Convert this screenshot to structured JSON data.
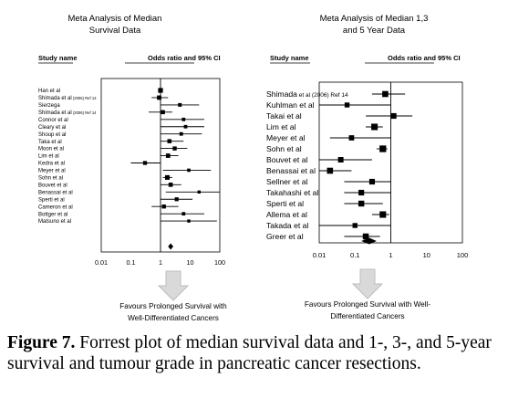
{
  "caption": {
    "figure_label": "Figure 7.",
    "text": "Forrest plot of median survival data and 1-, 3-, and 5-year survival and tumour grade in pancreatic cancer resections."
  },
  "colors": {
    "ink": "#000000",
    "arrow_fill": "#d9d9d9",
    "arrow_stroke": "#bdbdbd"
  },
  "icons": [
    "down-arrow-icon"
  ],
  "chart_data": [
    {
      "type": "forest",
      "title": "Meta Analysis of Median Survival Data",
      "title_lines": [
        "Meta Analysis of Median",
        "Survival Data"
      ],
      "column_headers": [
        "Study name",
        "Odds ratio and 95% CI"
      ],
      "xscale": "log",
      "xlim": [
        0.01,
        100
      ],
      "xticks": [
        "0.01",
        "0.1",
        "1",
        "10",
        "100"
      ],
      "reference_line": 1,
      "favours_label": [
        "Favours Prolonged Survival with",
        "Well-Differentiated Cancers"
      ],
      "studies": [
        {
          "name": "Han et al",
          "ref": "",
          "or": 1.0,
          "lo": 0.85,
          "hi": 1.15
        },
        {
          "name": "Shimada et al",
          "ref": "(2006) Ref 13",
          "or": 0.9,
          "lo": 0.5,
          "hi": 1.8
        },
        {
          "name": "Sierzega",
          "ref": "",
          "or": 4.5,
          "lo": 1.0,
          "hi": 20
        },
        {
          "name": "Shimada et al",
          "ref": "(2006) Ref 14",
          "or": 1.2,
          "lo": 0.4,
          "hi": 2.5
        },
        {
          "name": "Connor et al",
          "ref": "",
          "or": 6.0,
          "lo": 1.0,
          "hi": 30
        },
        {
          "name": "Cleary et al",
          "ref": "",
          "or": 7.0,
          "lo": 1.0,
          "hi": 30
        },
        {
          "name": "Shoup et al",
          "ref": "",
          "or": 5.0,
          "lo": 1.0,
          "hi": 25
        },
        {
          "name": "Taka et al",
          "ref": "",
          "or": 2.0,
          "lo": 1.0,
          "hi": 6.0
        },
        {
          "name": "Moon et al",
          "ref": "",
          "or": 3.0,
          "lo": 1.0,
          "hi": 8.0
        },
        {
          "name": "Lim et al",
          "ref": "",
          "or": 1.8,
          "lo": 1.0,
          "hi": 4.0
        },
        {
          "name": "Kedra et al",
          "ref": "",
          "or": 0.3,
          "lo": 0.1,
          "hi": 1.0
        },
        {
          "name": "Meyer et al",
          "ref": "",
          "or": 9.0,
          "lo": 1.2,
          "hi": 50
        },
        {
          "name": "Sohn et al",
          "ref": "",
          "or": 1.7,
          "lo": 1.2,
          "hi": 2.5
        },
        {
          "name": "Bouvet et al",
          "ref": "",
          "or": 2.2,
          "lo": 1.0,
          "hi": 5.0
        },
        {
          "name": "Benassai et al",
          "ref": "",
          "or": 20,
          "lo": 1.5,
          "hi": 100
        },
        {
          "name": "Sperti et al",
          "ref": "",
          "or": 3.5,
          "lo": 1.0,
          "hi": 12
        },
        {
          "name": "Cameron et al",
          "ref": "",
          "or": 1.3,
          "lo": 0.5,
          "hi": 4.0
        },
        {
          "name": "Bottger et al",
          "ref": "",
          "or": 6.0,
          "lo": 1.0,
          "hi": 30
        },
        {
          "name": "Matsuno et al",
          "ref": "",
          "or": 9.0,
          "lo": 1.0,
          "hi": 80
        }
      ],
      "summary": {
        "or": 2.2,
        "lo": 1.8,
        "hi": 2.7
      }
    },
    {
      "type": "forest",
      "title": "Meta Analysis of Median 1,3 and 5 Year Data",
      "title_lines": [
        "Meta Analysis of Median 1,3",
        "and 5 Year Data"
      ],
      "column_headers": [
        "Study name",
        "Odds ratio and 95% CI"
      ],
      "xscale": "log",
      "xlim": [
        0.01,
        100
      ],
      "xticks": [
        "0.01",
        "0.1",
        "1",
        "10",
        "100"
      ],
      "reference_line": 1,
      "favours_label": [
        "Favours Prolonged Survival with Well-",
        "Differentiated Cancers"
      ],
      "studies": [
        {
          "name": "Shimada",
          "ref": "et al (2006) Ref 14",
          "or": 0.7,
          "lo": 0.3,
          "hi": 2.5
        },
        {
          "name": "Kuhlman et al",
          "ref": "",
          "or": 0.06,
          "lo": 0.01,
          "hi": 1.0
        },
        {
          "name": "Takai et al",
          "ref": "",
          "or": 1.2,
          "lo": 0.2,
          "hi": 4.0
        },
        {
          "name": "Lim et al",
          "ref": "",
          "or": 0.35,
          "lo": 0.2,
          "hi": 0.6
        },
        {
          "name": "Meyer et al",
          "ref": "",
          "or": 0.08,
          "lo": 0.02,
          "hi": 1.0
        },
        {
          "name": "Sohn et al",
          "ref": "",
          "or": 0.6,
          "lo": 0.4,
          "hi": 0.8
        },
        {
          "name": "Bouvet et al",
          "ref": "",
          "or": 0.04,
          "lo": 0.01,
          "hi": 0.3
        },
        {
          "name": "Benassai et al",
          "ref": "",
          "or": 0.02,
          "lo": 0.01,
          "hi": 0.08
        },
        {
          "name": "Sellner et al",
          "ref": "",
          "or": 0.3,
          "lo": 0.05,
          "hi": 1.0
        },
        {
          "name": "Takahashi et al",
          "ref": "",
          "or": 0.15,
          "lo": 0.05,
          "hi": 1.0
        },
        {
          "name": "Sperti et al",
          "ref": "",
          "or": 0.15,
          "lo": 0.05,
          "hi": 0.6
        },
        {
          "name": "Allema et al",
          "ref": "",
          "or": 0.6,
          "lo": 0.3,
          "hi": 0.9
        },
        {
          "name": "Takada et al",
          "ref": "",
          "or": 0.1,
          "lo": 0.01,
          "hi": 1.0
        },
        {
          "name": "Greer et al",
          "ref": "",
          "or": 0.2,
          "lo": 0.05,
          "hi": 0.5
        }
      ],
      "summary": {
        "or": 0.25,
        "lo": 0.15,
        "hi": 0.4
      }
    }
  ]
}
